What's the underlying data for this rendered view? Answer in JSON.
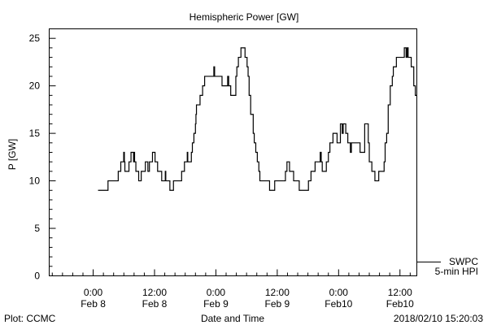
{
  "chart_data": {
    "type": "line",
    "title": "Hemispheric Power [GW]",
    "xlabel": "Date and Time",
    "ylabel": "P [GW]",
    "x_units": "hours since 0:00 Feb 8 2018",
    "xlim": [
      -8.6,
      63.3
    ],
    "ylim": [
      0,
      26
    ],
    "yticks": [
      0,
      5,
      10,
      15,
      20,
      25
    ],
    "xticks": [
      {
        "x": 0,
        "line1": "0:00",
        "line2": "Feb 8"
      },
      {
        "x": 12,
        "line1": "12:00",
        "line2": "Feb 8"
      },
      {
        "x": 24,
        "line1": "0:00",
        "line2": "Feb 9"
      },
      {
        "x": 36,
        "line1": "12:00",
        "line2": "Feb 9"
      },
      {
        "x": 48,
        "line1": "0:00",
        "line2": "Feb10"
      },
      {
        "x": 60,
        "line1": "12:00",
        "line2": "Feb10"
      }
    ],
    "grid": false,
    "legend": {
      "position": "bottom-right outside",
      "line1": "SWPC",
      "line2": "5-min HPI"
    },
    "series": [
      {
        "name": "SWPC 5-min HPI",
        "color": "#000000",
        "step": true,
        "points": [
          [
            0.95,
            9
          ],
          [
            2.9,
            10
          ],
          [
            4.9,
            11
          ],
          [
            5.4,
            12
          ],
          [
            5.97,
            13
          ],
          [
            6.1,
            12
          ],
          [
            6.2,
            11
          ],
          [
            7.0,
            12
          ],
          [
            7.4,
            13
          ],
          [
            7.9,
            12
          ],
          [
            8.0,
            13
          ],
          [
            8.1,
            12
          ],
          [
            8.35,
            11
          ],
          [
            8.9,
            10
          ],
          [
            9.4,
            11
          ],
          [
            10.2,
            12
          ],
          [
            10.7,
            11
          ],
          [
            11.0,
            12
          ],
          [
            11.6,
            13
          ],
          [
            12.1,
            12
          ],
          [
            12.6,
            11
          ],
          [
            13.4,
            10
          ],
          [
            14.1,
            11
          ],
          [
            14.2,
            10
          ],
          [
            15.0,
            9
          ],
          [
            15.7,
            10
          ],
          [
            17.3,
            11
          ],
          [
            17.85,
            12
          ],
          [
            18.4,
            13
          ],
          [
            18.5,
            12
          ],
          [
            19.2,
            13
          ],
          [
            19.4,
            14
          ],
          [
            19.7,
            15
          ],
          [
            20.0,
            16
          ],
          [
            20.1,
            17
          ],
          [
            20.2,
            18
          ],
          [
            20.9,
            19
          ],
          [
            21.4,
            20
          ],
          [
            21.8,
            21
          ],
          [
            23.6,
            22
          ],
          [
            23.75,
            21
          ],
          [
            25.2,
            20
          ],
          [
            26.3,
            21
          ],
          [
            26.5,
            20
          ],
          [
            26.9,
            19
          ],
          [
            27.9,
            21
          ],
          [
            28.1,
            22
          ],
          [
            28.4,
            23
          ],
          [
            28.9,
            24
          ],
          [
            29.7,
            23
          ],
          [
            30.1,
            22
          ],
          [
            30.3,
            21
          ],
          [
            30.5,
            19
          ],
          [
            30.8,
            17
          ],
          [
            31.3,
            15
          ],
          [
            31.5,
            14
          ],
          [
            31.8,
            13
          ],
          [
            32.1,
            12
          ],
          [
            32.4,
            11
          ],
          [
            32.6,
            10
          ],
          [
            34.5,
            9
          ],
          [
            35.5,
            10
          ],
          [
            37.6,
            11
          ],
          [
            37.9,
            12
          ],
          [
            38.4,
            11
          ],
          [
            39.2,
            10
          ],
          [
            40.3,
            9
          ],
          [
            42.1,
            10
          ],
          [
            42.6,
            11
          ],
          [
            43.4,
            12
          ],
          [
            44.4,
            13
          ],
          [
            44.6,
            12
          ],
          [
            44.8,
            11
          ],
          [
            45.6,
            12
          ],
          [
            46.0,
            13
          ],
          [
            46.3,
            14
          ],
          [
            46.9,
            15
          ],
          [
            47.7,
            14
          ],
          [
            48.35,
            16
          ],
          [
            48.7,
            15
          ],
          [
            48.9,
            16
          ],
          [
            49.4,
            15
          ],
          [
            49.8,
            14
          ],
          [
            50.3,
            13
          ],
          [
            50.5,
            14
          ],
          [
            52.2,
            13
          ],
          [
            53.1,
            16
          ],
          [
            53.8,
            14
          ],
          [
            54.0,
            12
          ],
          [
            54.5,
            11
          ],
          [
            55.1,
            10
          ],
          [
            55.85,
            11
          ],
          [
            56.9,
            12
          ],
          [
            57.1,
            14
          ],
          [
            57.4,
            15
          ],
          [
            57.7,
            18
          ],
          [
            58.1,
            20
          ],
          [
            58.5,
            21
          ],
          [
            58.7,
            22
          ],
          [
            59.3,
            23
          ],
          [
            60.85,
            24
          ],
          [
            61.2,
            23
          ],
          [
            61.4,
            24
          ],
          [
            61.6,
            23
          ],
          [
            62.2,
            22
          ],
          [
            62.7,
            20
          ],
          [
            63.0,
            19
          ]
        ]
      }
    ]
  },
  "footer": {
    "plot_credit": "Plot: CCMC",
    "timestamp": "2018/02/10 15:20:03"
  }
}
